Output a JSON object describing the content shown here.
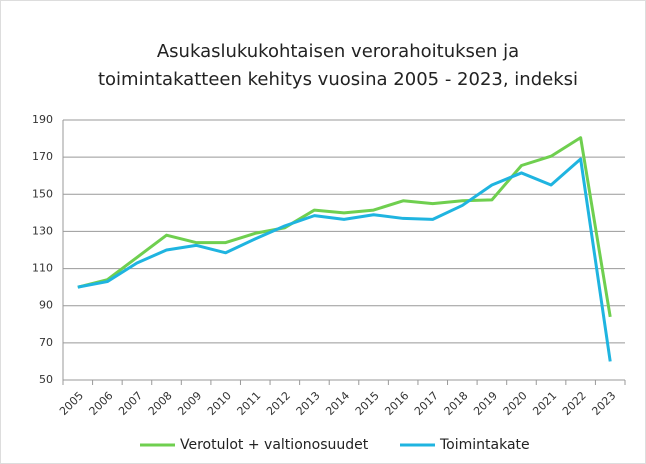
{
  "chart_data": {
    "type": "line",
    "title": [
      "Asukaslukukohtaisen verorahoituksen ja",
      "toimintakatteen kehitys vuosina 2005 - 2023, indeksi"
    ],
    "categories": [
      "2005",
      "2006",
      "2007",
      "2008",
      "2009",
      "2010",
      "2011",
      "2012",
      "2013",
      "2014",
      "2015",
      "2016",
      "2017",
      "2018",
      "2019",
      "2020",
      "2021",
      "2022",
      "2023"
    ],
    "series": [
      {
        "name": "Verotulot + valtionosuudet",
        "color": "#6fcf4f",
        "values": [
          100,
          104,
          116,
          128,
          124,
          124,
          129,
          132,
          141.5,
          140,
          141.5,
          146.5,
          145,
          146.5,
          147,
          165.5,
          170.5,
          180.5,
          84
        ]
      },
      {
        "name": "Toimintakate",
        "color": "#1fb4e0",
        "values": [
          100,
          103,
          113,
          120,
          122.5,
          118.5,
          126,
          133,
          138.5,
          136.5,
          139,
          137,
          136.5,
          144,
          155,
          161.5,
          155,
          169,
          60
        ]
      }
    ],
    "ylim": [
      50,
      190
    ],
    "yticks": [
      50,
      70,
      90,
      110,
      130,
      150,
      170,
      190
    ],
    "grid": true,
    "legend": "bottom"
  }
}
